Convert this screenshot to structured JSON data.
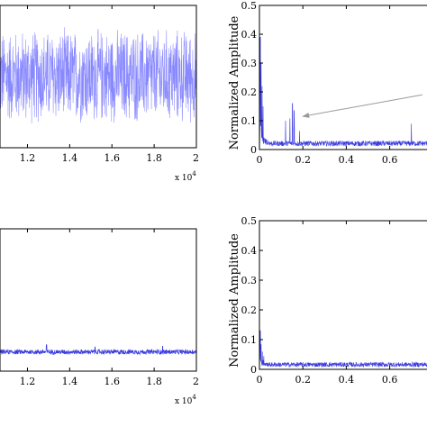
{
  "colors": {
    "signal": "#3a3ae0",
    "signal_light": "#8888ff",
    "axis": "#000000",
    "annotation_arrow": "#9a9a9a"
  },
  "chart_data": [
    {
      "id": "top-left",
      "type": "line",
      "title": "",
      "xlabel": "",
      "ylabel": "",
      "x_exponent_label": "x 10",
      "x_exponent_power": "4",
      "xlim": [
        1.07,
        2.0
      ],
      "ylim": [
        -1.0,
        1.0
      ],
      "xticks": [
        1.2,
        1.4,
        1.6,
        1.8,
        2
      ],
      "xtick_labels": [
        "1.2",
        "1.4",
        "1.6",
        "1.8",
        "2"
      ],
      "series": [
        {
          "kind": "noise",
          "center": 0.0,
          "amplitude": 0.72,
          "samples": 900
        }
      ]
    },
    {
      "id": "top-right",
      "type": "line",
      "title": "",
      "xlabel": "",
      "ylabel": "Normalized Amplitude",
      "xlim": [
        0,
        0.78
      ],
      "ylim": [
        0,
        0.5
      ],
      "xticks": [
        0,
        0.2,
        0.4,
        0.6
      ],
      "xtick_labels": [
        "0",
        "0.2",
        "0.4",
        "0.6"
      ],
      "yticks": [
        0,
        0.1,
        0.2,
        0.3,
        0.4,
        0.5
      ],
      "ytick_labels": [
        "0",
        "0.1",
        "0.2",
        "0.3",
        "0.4",
        "0.5"
      ],
      "series": [
        {
          "kind": "spectrum",
          "floor": 0.012,
          "floor_noise": 0.018,
          "peaks": [
            {
              "x": 0.0,
              "y": 0.45
            },
            {
              "x": 0.004,
              "y": 0.39
            },
            {
              "x": 0.008,
              "y": 0.3
            },
            {
              "x": 0.012,
              "y": 0.22
            },
            {
              "x": 0.017,
              "y": 0.15
            },
            {
              "x": 0.12,
              "y": 0.1
            },
            {
              "x": 0.14,
              "y": 0.108
            },
            {
              "x": 0.152,
              "y": 0.16
            },
            {
              "x": 0.16,
              "y": 0.135
            },
            {
              "x": 0.185,
              "y": 0.065
            },
            {
              "x": 0.7,
              "y": 0.09
            }
          ]
        }
      ],
      "annotation_arrow": {
        "from": [
          0.75,
          0.19
        ],
        "to": [
          0.2,
          0.115
        ]
      }
    },
    {
      "id": "bottom-left",
      "type": "line",
      "title": "",
      "xlabel": "",
      "ylabel": "",
      "x_exponent_label": "x 10",
      "x_exponent_power": "4",
      "xlim": [
        1.07,
        2.0
      ],
      "ylim": [
        -1.0,
        1.0
      ],
      "xticks": [
        1.2,
        1.4,
        1.6,
        1.8,
        2
      ],
      "xtick_labels": [
        "1.2",
        "1.4",
        "1.6",
        "1.8",
        "2"
      ],
      "series": [
        {
          "kind": "noise",
          "center": -0.73,
          "amplitude": 0.04,
          "samples": 900,
          "spikes": [
            {
              "x": 1.29,
              "y": -0.63
            },
            {
              "x": 1.52,
              "y": -0.66
            },
            {
              "x": 1.84,
              "y": -0.65
            }
          ]
        }
      ]
    },
    {
      "id": "bottom-right",
      "type": "line",
      "title": "",
      "xlabel": "",
      "ylabel": "Normalized Amplitude",
      "xlim": [
        0,
        0.78
      ],
      "ylim": [
        0,
        0.5
      ],
      "xticks": [
        0,
        0.2,
        0.4,
        0.6
      ],
      "xtick_labels": [
        "0",
        "0.2",
        "0.4",
        "0.6"
      ],
      "yticks": [
        0,
        0.1,
        0.2,
        0.3,
        0.4,
        0.5
      ],
      "ytick_labels": [
        "0",
        "0.1",
        "0.2",
        "0.3",
        "0.4",
        "0.5"
      ],
      "series": [
        {
          "kind": "spectrum",
          "floor": 0.008,
          "floor_noise": 0.016,
          "peaks": [
            {
              "x": 0.0,
              "y": 0.19
            },
            {
              "x": 0.004,
              "y": 0.13
            },
            {
              "x": 0.008,
              "y": 0.085
            },
            {
              "x": 0.013,
              "y": 0.06
            },
            {
              "x": 0.02,
              "y": 0.045
            }
          ]
        }
      ]
    }
  ]
}
